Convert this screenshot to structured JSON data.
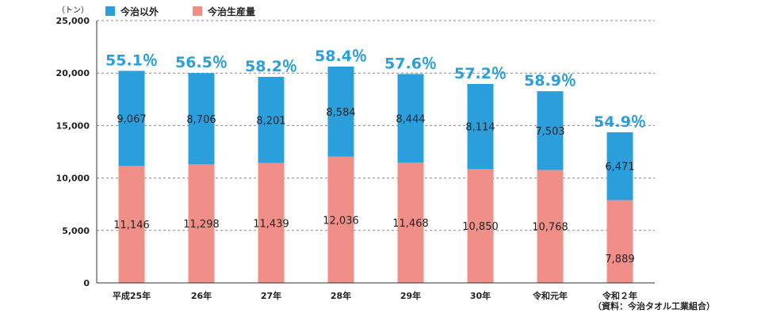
{
  "chart_data": {
    "type": "bar",
    "stacked": true,
    "unit_label": "（トン）",
    "categories": [
      "平成25年",
      "26年",
      "27年",
      "28年",
      "29年",
      "30年",
      "令和元年",
      "令和２年"
    ],
    "series": [
      {
        "name": "今治生産量",
        "color": "#f08e88",
        "values": [
          11146,
          11298,
          11439,
          12036,
          11468,
          10850,
          10768,
          7889
        ]
      },
      {
        "name": "今治以外",
        "color": "#2b9fdc",
        "values": [
          9067,
          8706,
          8201,
          8584,
          8444,
          8114,
          7503,
          6471
        ]
      }
    ],
    "value_labels": {
      "bottom": [
        "11,146",
        "11,298",
        "11,439",
        "12,036",
        "11,468",
        "10,850",
        "10,768",
        "7,889"
      ],
      "top": [
        "9,067",
        "8,706",
        "8,201",
        "8,584",
        "8,444",
        "8,114",
        "7,503",
        "6,471"
      ]
    },
    "share_labels": [
      "55.1％",
      "56.5％",
      "58.2％",
      "58.4％",
      "57.6％",
      "57.2％",
      "58.9％",
      "54.9％"
    ],
    "share_color": "#2b9fdc",
    "ylim": [
      0,
      25000
    ],
    "yticks": [
      0,
      5000,
      10000,
      15000,
      20000,
      25000
    ],
    "ytick_labels": [
      "0",
      "5,000",
      "10,000",
      "15,000",
      "20,000",
      "25,000"
    ],
    "grid": "dashed",
    "legend_position": "top-left",
    "source_note": "（資料：今治タオル工業組合）"
  }
}
